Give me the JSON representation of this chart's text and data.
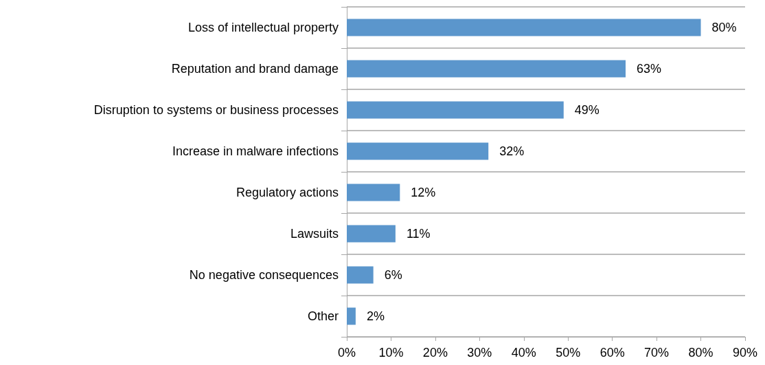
{
  "chart_data": {
    "type": "bar",
    "orientation": "horizontal",
    "categories": [
      "Loss of intellectual property",
      "Reputation and brand damage",
      "Disruption to systems or business processes",
      "Increase in malware infections",
      "Regulatory actions",
      "Lawsuits",
      "No negative consequences",
      "Other"
    ],
    "values": [
      80,
      63,
      49,
      32,
      12,
      11,
      6,
      2
    ],
    "value_labels": [
      "80%",
      "63%",
      "49%",
      "32%",
      "12%",
      "11%",
      "6%",
      "2%"
    ],
    "color": "#5b96cc",
    "xlim": [
      0,
      90
    ],
    "xticks": [
      {
        "value": 0,
        "label": "0%"
      },
      {
        "value": 10,
        "label": "10%"
      },
      {
        "value": 20,
        "label": "20%"
      },
      {
        "value": 30,
        "label": "30%"
      },
      {
        "value": 40,
        "label": "40%"
      },
      {
        "value": 50,
        "label": "50%"
      },
      {
        "value": 60,
        "label": "60%"
      },
      {
        "value": 70,
        "label": "70%"
      },
      {
        "value": 80,
        "label": "80%"
      },
      {
        "value": 90,
        "label": "90%"
      }
    ],
    "grid": "y"
  }
}
